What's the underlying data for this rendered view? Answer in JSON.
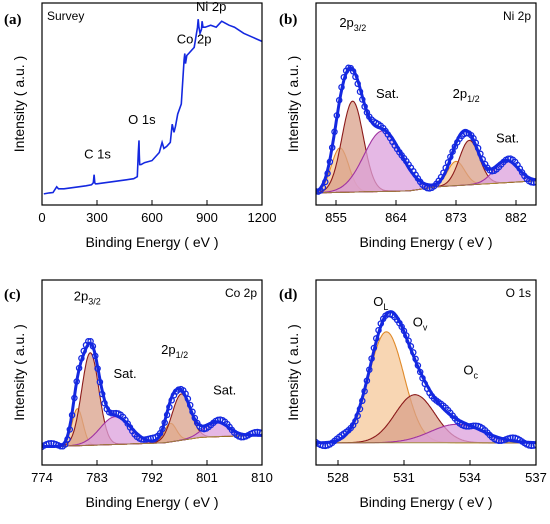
{
  "chart_data": [
    {
      "id": "a",
      "panel_label": "(a)",
      "type": "line",
      "title": "Survey",
      "xlabel": "Binding Energy ( eV )",
      "ylabel": "Intensity ( a.u. )",
      "xlim": [
        0,
        1200
      ],
      "ylim": [
        0,
        10
      ],
      "xticks": [
        "0",
        "300",
        "600",
        "900",
        "1200"
      ],
      "tick_values": [
        0,
        300,
        600,
        900,
        1200
      ],
      "series": [
        {
          "color": "#1428e0",
          "x": [
            10,
            40,
            60,
            80,
            90,
            120,
            160,
            200,
            240,
            270,
            280,
            284,
            288,
            292,
            300,
            340,
            380,
            420,
            460,
            500,
            520,
            525,
            529,
            531,
            533,
            540,
            560,
            600,
            640,
            655,
            665,
            680,
            700,
            710,
            720,
            728,
            740,
            760,
            775,
            779,
            783,
            790,
            800,
            830,
            848,
            852,
            856,
            862,
            870,
            873,
            878,
            890,
            920,
            950,
            980,
            1000,
            1020,
            1050,
            1100,
            1150,
            1200
          ],
          "y": [
            0.55,
            0.6,
            0.62,
            0.9,
            0.8,
            0.8,
            0.85,
            0.9,
            0.95,
            1.0,
            1.1,
            1.5,
            1.1,
            1.05,
            1.05,
            1.1,
            1.15,
            1.2,
            1.25,
            1.3,
            1.4,
            2.6,
            3.2,
            2.5,
            2.0,
            2.0,
            2.1,
            2.2,
            2.6,
            3.1,
            2.8,
            2.9,
            3.1,
            4.0,
            3.6,
            3.9,
            4.5,
            5.0,
            7.2,
            7.5,
            7.0,
            7.4,
            7.5,
            7.8,
            8.8,
            9.2,
            8.8,
            8.5,
            8.7,
            9.1,
            8.8,
            8.8,
            8.9,
            8.8,
            9.1,
            9.0,
            8.9,
            8.8,
            8.5,
            8.3,
            8.1
          ]
        }
      ],
      "annotations": [
        {
          "text": "C 1s",
          "x": 230,
          "y": 2.3
        },
        {
          "text": "O 1s",
          "x": 470,
          "y": 4.0
        },
        {
          "text": "Co 2p",
          "x": 735,
          "y": 8.0
        },
        {
          "text": "Ni 2p",
          "x": 840,
          "y": 9.6
        }
      ]
    },
    {
      "id": "b",
      "panel_label": "(b)",
      "type": "line",
      "title": "Ni 2p",
      "xlabel": "Binding Energy ( eV )",
      "ylabel": "Intensity ( a.u. )",
      "xlim": [
        852,
        885
      ],
      "ylim": [
        0,
        10
      ],
      "xticks": [
        "855",
        "864",
        "873",
        "882"
      ],
      "tick_values": [
        855,
        864,
        873,
        882
      ],
      "baseline": {
        "x": [
          852,
          866,
          870,
          885
        ],
        "y": [
          0.6,
          0.7,
          0.9,
          1.2
        ]
      },
      "components": [
        {
          "center": 855.6,
          "height": 2.2,
          "width": 1.3,
          "fill": "#f5c89a",
          "stroke": "#e08a2a"
        },
        {
          "center": 857.5,
          "height": 4.5,
          "width": 1.6,
          "fill": "#d9a08a",
          "stroke": "#8b1a1a"
        },
        {
          "center": 862.0,
          "height": 3.0,
          "width": 2.8,
          "fill": "#dca0dc",
          "stroke": "#a032a0"
        },
        {
          "center": 873.0,
          "height": 1.2,
          "width": 1.3,
          "fill": "#f5c89a",
          "stroke": "#e08a2a"
        },
        {
          "center": 875.0,
          "height": 2.2,
          "width": 1.5,
          "fill": "#d9a08a",
          "stroke": "#8b1a1a"
        },
        {
          "center": 880.5,
          "height": 1.1,
          "width": 1.8,
          "fill": "#dca0dc",
          "stroke": "#a032a0"
        }
      ],
      "annotations": [
        {
          "text": "2p",
          "sub": "3/2",
          "x": 855.5,
          "y": 8.8
        },
        {
          "text": "Sat.",
          "x": 861.0,
          "y": 5.3
        },
        {
          "text": "2p",
          "sub": "1/2",
          "x": 872.5,
          "y": 5.3
        },
        {
          "text": "Sat.",
          "x": 879.0,
          "y": 3.1
        }
      ]
    },
    {
      "id": "c",
      "panel_label": "(c)",
      "type": "line",
      "title": "Co 2p",
      "xlabel": "Binding Energy ( eV )",
      "ylabel": "Intensity ( a.u. )",
      "xlim": [
        774,
        810
      ],
      "ylim": [
        0,
        10
      ],
      "xticks": [
        "774",
        "783",
        "792",
        "801",
        "810"
      ],
      "tick_values": [
        774,
        783,
        792,
        801,
        810
      ],
      "baseline": {
        "x": [
          776,
          794,
          800,
          808
        ],
        "y": [
          1.0,
          1.2,
          1.5,
          1.6
        ]
      },
      "components": [
        {
          "center": 779.8,
          "height": 2.0,
          "width": 0.9,
          "fill": "#f5c89a",
          "stroke": "#e08a2a"
        },
        {
          "center": 781.9,
          "height": 5.0,
          "width": 1.4,
          "fill": "#d9a08a",
          "stroke": "#8b1a1a"
        },
        {
          "center": 786.0,
          "height": 1.5,
          "width": 2.5,
          "fill": "#dca0dc",
          "stroke": "#a032a0"
        },
        {
          "center": 795.0,
          "height": 1.0,
          "width": 1.0,
          "fill": "#f5c89a",
          "stroke": "#e08a2a"
        },
        {
          "center": 796.8,
          "height": 2.5,
          "width": 1.5,
          "fill": "#d9a08a",
          "stroke": "#8b1a1a"
        },
        {
          "center": 802.5,
          "height": 0.8,
          "width": 2.0,
          "fill": "#dca0dc",
          "stroke": "#a032a0"
        }
      ],
      "annotations": [
        {
          "text": "2p",
          "sub": "3/2",
          "x": 779.2,
          "y": 8.9
        },
        {
          "text": "Sat.",
          "x": 785.7,
          "y": 4.7
        },
        {
          "text": "2p",
          "sub": "1/2",
          "x": 793.5,
          "y": 6.0
        },
        {
          "text": "Sat.",
          "x": 802.0,
          "y": 3.8
        }
      ]
    },
    {
      "id": "d",
      "panel_label": "(d)",
      "type": "line",
      "title": "O 1s",
      "xlabel": "Binding Energy ( eV )",
      "ylabel": "Intensity ( a.u. )",
      "xlim": [
        527,
        537
      ],
      "ylim": [
        0,
        10
      ],
      "xticks": [
        "528",
        "531",
        "534",
        "537"
      ],
      "tick_values": [
        528,
        531,
        534,
        537
      ],
      "baseline": {
        "x": [
          527,
          537
        ],
        "y": [
          1.2,
          1.2
        ]
      },
      "components": [
        {
          "center": 530.2,
          "height": 6.0,
          "width": 0.8,
          "fill": "#f5c89a",
          "stroke": "#e08a2a"
        },
        {
          "center": 531.5,
          "height": 2.6,
          "width": 0.9,
          "fill": "#d9a08a",
          "stroke": "#8b1a1a"
        },
        {
          "center": 533.4,
          "height": 1.0,
          "width": 1.2,
          "fill": "#dca0dc",
          "stroke": "#a032a0"
        }
      ],
      "annotations": [
        {
          "text": "O",
          "sub": "L",
          "x": 529.6,
          "y": 8.6
        },
        {
          "text": "O",
          "sub": "v",
          "x": 531.4,
          "y": 7.5
        },
        {
          "text": "O",
          "sub": "c",
          "x": 533.7,
          "y": 4.9
        }
      ]
    }
  ],
  "colors": {
    "data": "#1428e0",
    "axes": "#000000"
  }
}
